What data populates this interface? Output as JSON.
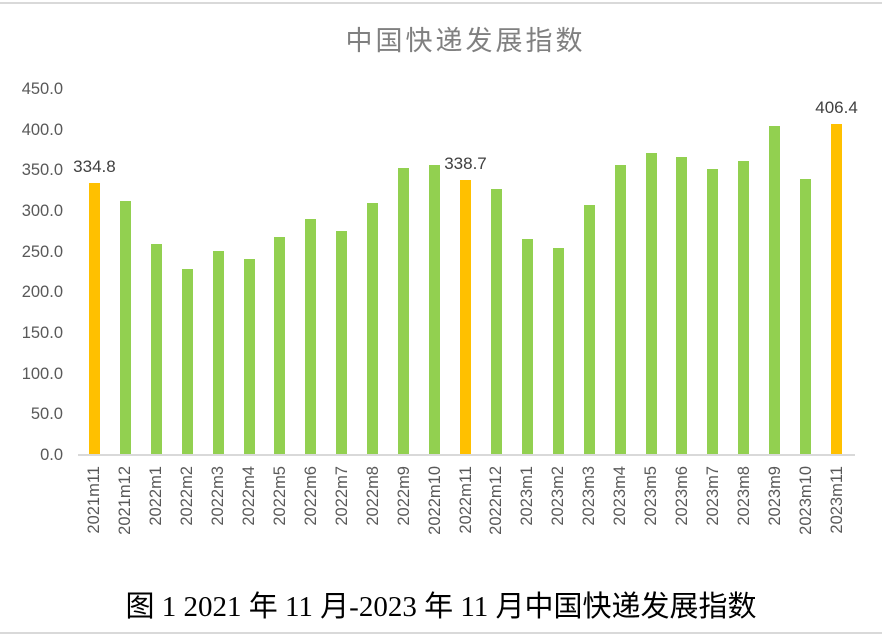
{
  "page": {
    "caption": "图 1 2021 年 11 月-2023 年 11 月中国快递发展指数"
  },
  "chart_data": {
    "type": "bar",
    "title": "中国快递发展指数",
    "categories": [
      "2021m11",
      "2021m12",
      "2022m1",
      "2022m2",
      "2022m3",
      "2022m4",
      "2022m5",
      "2022m6",
      "2022m7",
      "2022m8",
      "2022m9",
      "2022m10",
      "2022m11",
      "2022m12",
      "2023m1",
      "2023m2",
      "2023m3",
      "2023m4",
      "2023m5",
      "2023m6",
      "2023m7",
      "2023m8",
      "2023m9",
      "2023m10",
      "2023m11"
    ],
    "values": [
      334.8,
      312,
      260,
      229,
      251,
      241,
      268,
      290,
      276,
      310,
      353,
      357,
      338.7,
      327,
      265,
      255,
      307,
      356,
      371,
      366,
      352,
      361,
      405,
      339,
      406.4
    ],
    "data_labels": [
      {
        "index": 0,
        "text": "334.8"
      },
      {
        "index": 12,
        "text": "338.7"
      },
      {
        "index": 24,
        "text": "406.4"
      }
    ],
    "highlighted_indices": [
      0,
      12,
      24
    ],
    "bar_color_default": "#92D050",
    "bar_color_highlight": "#FFC000",
    "yticks": [
      "0.0",
      "50.0",
      "100.0",
      "150.0",
      "200.0",
      "250.0",
      "300.0",
      "350.0",
      "400.0",
      "450.0"
    ],
    "ylim": [
      0,
      450
    ],
    "xlabel": "",
    "ylabel": "",
    "grid": "off",
    "legend": "none",
    "axis_line_color": "#d9d9d9",
    "tick_label_color": "#595959",
    "title_color": "#808080",
    "data_label_color": "#404040"
  }
}
